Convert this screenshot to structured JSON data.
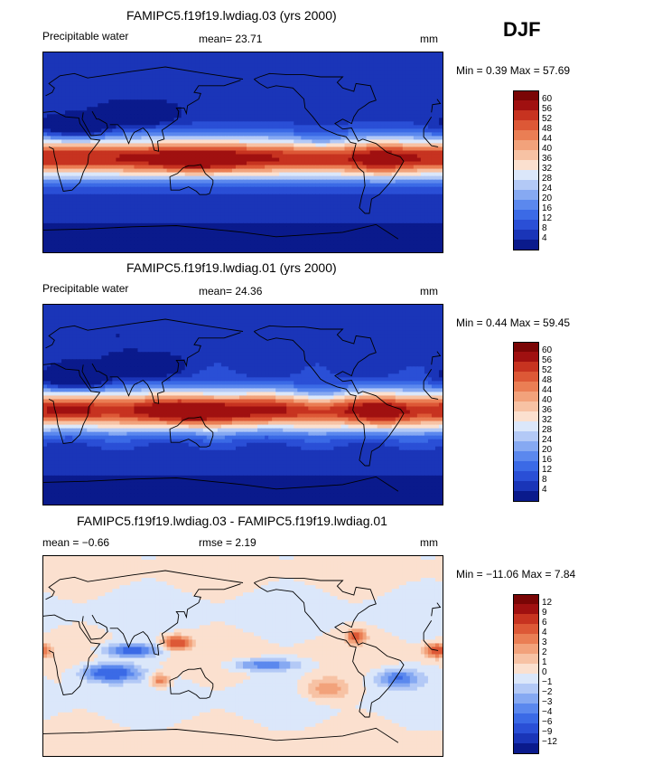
{
  "season": "DJF",
  "panels": [
    {
      "title": "FAMIPC5.f19f19.lwdiag.03 (yrs 2000)",
      "left_label": "Precipitable water",
      "center_label": "mean=  23.71",
      "units": "mm",
      "minmax": "Min =   0.39 Max =  57.69",
      "colorbar_labels": [
        "60",
        "56",
        "52",
        "48",
        "44",
        "40",
        "36",
        "32",
        "28",
        "24",
        "20",
        "16",
        "12",
        "8",
        "4"
      ],
      "field": "pw"
    },
    {
      "title": "FAMIPC5.f19f19.lwdiag.01 (yrs 2000)",
      "left_label": "Precipitable water",
      "center_label": "mean=  24.36",
      "units": "mm",
      "minmax": "Min =   0.44 Max =  59.45",
      "colorbar_labels": [
        "60",
        "56",
        "52",
        "48",
        "44",
        "40",
        "36",
        "32",
        "28",
        "24",
        "20",
        "16",
        "12",
        "8",
        "4"
      ],
      "field": "pw"
    },
    {
      "title": "FAMIPC5.f19f19.lwdiag.03 - FAMIPC5.f19f19.lwdiag.01",
      "left_label": "mean =  −0.66",
      "center_label": "rmse =   2.19",
      "units": "mm",
      "minmax": "Min = −11.06 Max =   7.84",
      "colorbar_labels": [
        "12",
        "9",
        "6",
        "4",
        "3",
        "2",
        "1",
        "0",
        "−1",
        "−2",
        "−3",
        "−4",
        "−6",
        "−9",
        "−12"
      ],
      "field": "diff"
    }
  ],
  "colors": {
    "pw_scale": [
      "#0a1a8c",
      "#1a35b8",
      "#2a4fd6",
      "#3b6ae6",
      "#5b88ee",
      "#86a9f2",
      "#b3c9f6",
      "#dbe7fa",
      "#fbe0cf",
      "#f7c2a4",
      "#f2a27b",
      "#ea7e54",
      "#dd5836",
      "#c73320",
      "#a01010",
      "#7a0505"
    ],
    "diff_scale": [
      "#0a1a8c",
      "#1a35b8",
      "#2a4fd6",
      "#3b6ae6",
      "#5b88ee",
      "#86a9f2",
      "#b3c9f6",
      "#dbe7fa",
      "#fbe0cf",
      "#f7c2a4",
      "#f2a27b",
      "#ea7e54",
      "#dd5836",
      "#c73320",
      "#a01010",
      "#7a0505"
    ]
  },
  "chart_data": {
    "type": "heatmap",
    "title": "DJF Precipitable water",
    "projection": "cylindrical equidistant, global, centered on dateline",
    "fields": [
      {
        "name": "FAMIPC5.f19f19.lwdiag.03",
        "mean": 23.71,
        "min": 0.39,
        "max": 57.69,
        "units": "mm",
        "contour_levels": [
          4,
          8,
          12,
          16,
          20,
          24,
          28,
          32,
          36,
          40,
          44,
          48,
          52,
          56,
          60
        ]
      },
      {
        "name": "FAMIPC5.f19f19.lwdiag.01",
        "mean": 24.36,
        "min": 0.44,
        "max": 59.45,
        "units": "mm",
        "contour_levels": [
          4,
          8,
          12,
          16,
          20,
          24,
          28,
          32,
          36,
          40,
          44,
          48,
          52,
          56,
          60
        ]
      },
      {
        "name": "FAMIPC5.f19f19.lwdiag.03 - FAMIPC5.f19f19.lwdiag.01",
        "mean": -0.66,
        "rmse": 2.19,
        "min": -11.06,
        "max": 7.84,
        "units": "mm",
        "contour_levels": [
          -12,
          -9,
          -6,
          -4,
          -3,
          -2,
          -1,
          0,
          1,
          2,
          3,
          4,
          6,
          9,
          12
        ]
      }
    ]
  }
}
